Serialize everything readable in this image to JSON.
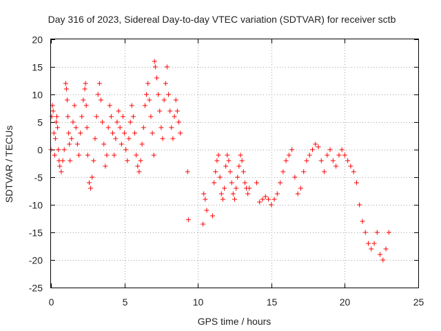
{
  "chart_data": {
    "type": "scatter",
    "title": "Day 316 of 2023, Sidereal Day-to-day VTEC variation (SDTVAR) for receiver sctb",
    "xlabel": "GPS time / hours",
    "ylabel": "SDTVAR / TECUs",
    "xlim": [
      0,
      25
    ],
    "ylim": [
      -25,
      20
    ],
    "xticks": [
      0,
      5,
      10,
      15,
      20,
      25
    ],
    "yticks": [
      -25,
      -20,
      -15,
      -10,
      -5,
      0,
      5,
      10,
      15,
      20
    ],
    "grid": true,
    "marker": "+",
    "color": "#ff0000",
    "series": [
      {
        "name": "SDTVAR",
        "x": [
          0.0,
          0.05,
          0.1,
          0.15,
          0.2,
          0.25,
          0.3,
          0.35,
          0.4,
          0.45,
          0.5,
          0.55,
          0.6,
          0.7,
          0.8,
          0.9,
          1.0,
          1.05,
          1.1,
          1.15,
          1.2,
          1.25,
          1.3,
          1.4,
          1.5,
          1.6,
          1.7,
          1.8,
          1.9,
          2.0,
          2.1,
          2.2,
          2.3,
          2.35,
          2.4,
          2.45,
          2.5,
          2.6,
          2.7,
          2.8,
          2.9,
          3.0,
          3.1,
          3.2,
          3.3,
          3.4,
          3.5,
          3.6,
          3.7,
          3.8,
          3.9,
          4.0,
          4.1,
          4.2,
          4.3,
          4.4,
          4.5,
          4.6,
          4.7,
          4.8,
          4.9,
          5.0,
          5.1,
          5.2,
          5.3,
          5.4,
          5.5,
          5.6,
          5.7,
          5.8,
          5.9,
          6.0,
          6.1,
          6.2,
          6.3,
          6.4,
          6.5,
          6.6,
          6.7,
          6.8,
          6.9,
          7.0,
          7.05,
          7.1,
          7.2,
          7.3,
          7.4,
          7.5,
          7.6,
          7.7,
          7.8,
          7.9,
          8.0,
          8.1,
          8.2,
          8.3,
          8.4,
          8.5,
          8.6,
          8.7,
          8.8,
          9.3,
          9.35,
          10.35,
          10.4,
          10.5,
          10.6,
          11.0,
          11.1,
          11.2,
          11.3,
          11.4,
          11.5,
          11.6,
          11.7,
          11.8,
          11.9,
          12.0,
          12.1,
          12.2,
          12.3,
          12.4,
          12.5,
          12.6,
          12.7,
          12.8,
          12.9,
          13.0,
          13.1,
          13.2,
          13.3,
          13.4,
          13.5,
          14.0,
          14.2,
          14.4,
          14.6,
          14.8,
          15.0,
          15.2,
          15.4,
          15.6,
          15.8,
          16.0,
          16.2,
          16.4,
          16.6,
          16.8,
          17.0,
          17.2,
          17.4,
          17.6,
          17.8,
          18.0,
          18.2,
          18.4,
          18.6,
          18.8,
          19.0,
          19.2,
          19.4,
          19.6,
          19.8,
          20.0,
          20.2,
          20.4,
          20.6,
          20.8,
          21.0,
          21.2,
          21.4,
          21.6,
          21.8,
          22.0,
          22.2,
          22.4,
          22.6,
          22.8,
          23.0
        ],
        "y": [
          0,
          6,
          8,
          7,
          3,
          -1,
          2,
          5,
          6,
          4,
          0,
          -2,
          -3,
          -4,
          -2,
          0,
          12,
          11,
          9,
          6,
          3,
          1,
          -2,
          2,
          5,
          8,
          4,
          1,
          -1,
          3,
          6,
          9,
          11,
          12,
          8,
          4,
          -1,
          -6,
          -7,
          -5,
          -2,
          2,
          6,
          10,
          12,
          9,
          5,
          1,
          -3,
          -1,
          4,
          8,
          6,
          3,
          -1,
          2,
          5,
          7,
          4,
          1,
          6,
          3,
          0,
          -2,
          2,
          5,
          8,
          6,
          3,
          -1,
          -3,
          -4,
          -2,
          1,
          4,
          8,
          10,
          12,
          9,
          6,
          3,
          -1,
          16,
          15,
          13,
          10,
          7,
          4,
          2,
          9,
          12,
          15,
          10,
          7,
          4,
          2,
          6,
          9,
          7,
          5,
          3,
          -4,
          -12.7,
          -13.5,
          -8,
          -9,
          -11,
          -12,
          -6,
          -4,
          -2,
          -1,
          -5,
          -8,
          -9,
          -7,
          -3,
          -1,
          -2,
          -4,
          -6,
          -8,
          -9,
          -7,
          -5,
          -3,
          -1,
          -2,
          -4,
          -6,
          -7,
          -8,
          -7,
          -6,
          -9.5,
          -9,
          -8.5,
          -9,
          -10,
          -9,
          -8,
          -6,
          -4,
          -2,
          -1,
          0,
          -5,
          -8,
          -7,
          -4,
          -2,
          -1,
          0,
          1,
          0.5,
          -2,
          -4,
          -1,
          0,
          -2,
          -3,
          -1,
          0,
          -1,
          -2,
          -3,
          -4,
          -6,
          -10,
          -13,
          -15,
          -17,
          -18,
          -17,
          -15,
          -19,
          -20,
          -18,
          -15
        ]
      }
    ]
  }
}
